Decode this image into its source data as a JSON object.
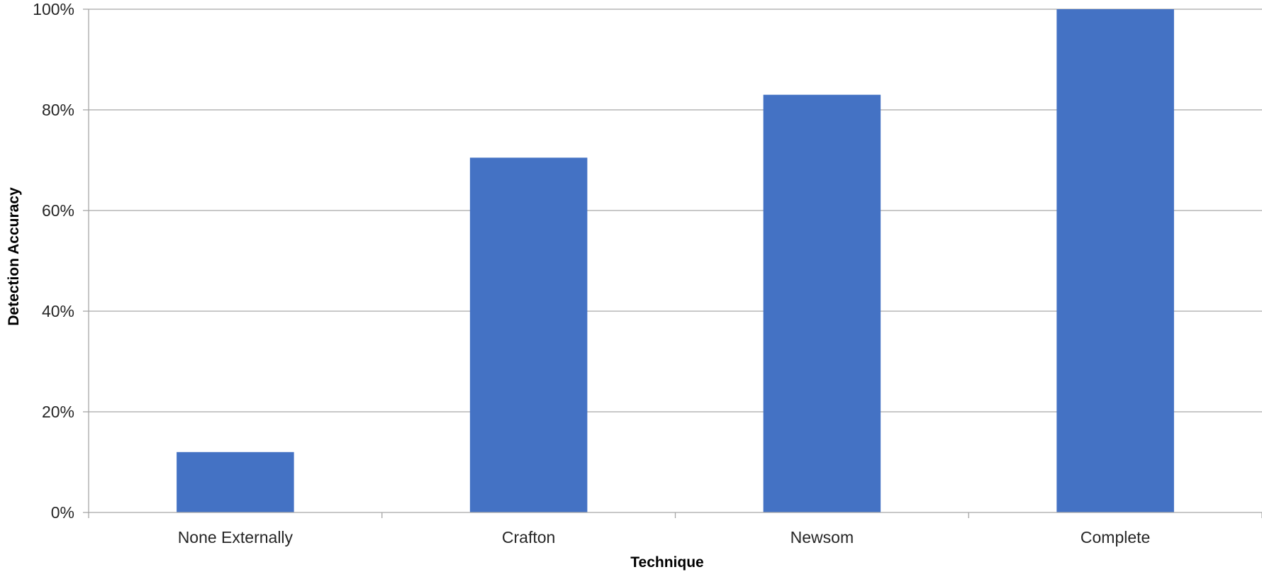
{
  "chart_data": {
    "type": "bar",
    "categories": [
      "None Externally",
      "Crafton",
      "Newsom",
      "Complete"
    ],
    "values": [
      12,
      70.5,
      83,
      100
    ],
    "y_unit": "%",
    "ylim": [
      0,
      100
    ],
    "yticks": [
      "0%",
      "20%",
      "40%",
      "60%",
      "80%",
      "100%"
    ],
    "xlabel": "Technique",
    "ylabel": "Detection Accuracy",
    "grid": true,
    "bar_color": "#4472C4",
    "grid_color": "#A6A6A6"
  }
}
